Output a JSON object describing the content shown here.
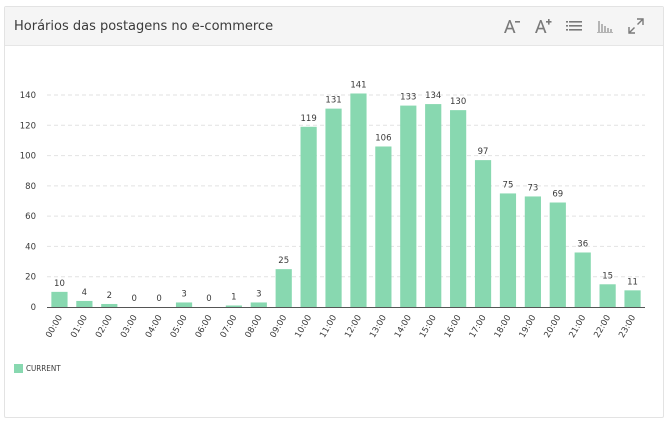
{
  "header": {
    "title": "Horários das postagens no e-commerce"
  },
  "toolbar": {
    "icons": [
      "decrease-font-icon",
      "increase-font-icon",
      "list-icon",
      "bar-chart-icon",
      "expand-icon"
    ]
  },
  "colors": {
    "bar": "#88d8b0",
    "grid": "#e2e2e2",
    "axis": "#555555",
    "text": "#3a3a3a"
  },
  "chart_data": {
    "type": "bar",
    "categories": [
      "00:00",
      "01:00",
      "02:00",
      "03:00",
      "04:00",
      "05:00",
      "06:00",
      "07:00",
      "08:00",
      "09:00",
      "10:00",
      "11:00",
      "12:00",
      "13:00",
      "14:00",
      "15:00",
      "16:00",
      "17:00",
      "18:00",
      "19:00",
      "20:00",
      "21:00",
      "22:00",
      "23:00"
    ],
    "series": [
      {
        "name": "CURRENT",
        "values": [
          10,
          4,
          2,
          0,
          0,
          3,
          0,
          1,
          3,
          25,
          119,
          131,
          141,
          106,
          133,
          134,
          130,
          97,
          75,
          73,
          69,
          36,
          15,
          11
        ]
      }
    ],
    "yticks": [
      0,
      20,
      40,
      60,
      80,
      100,
      120,
      140
    ],
    "ylim": [
      0,
      150
    ],
    "grid": true,
    "legend": "bottom-left",
    "data_labels": true
  }
}
